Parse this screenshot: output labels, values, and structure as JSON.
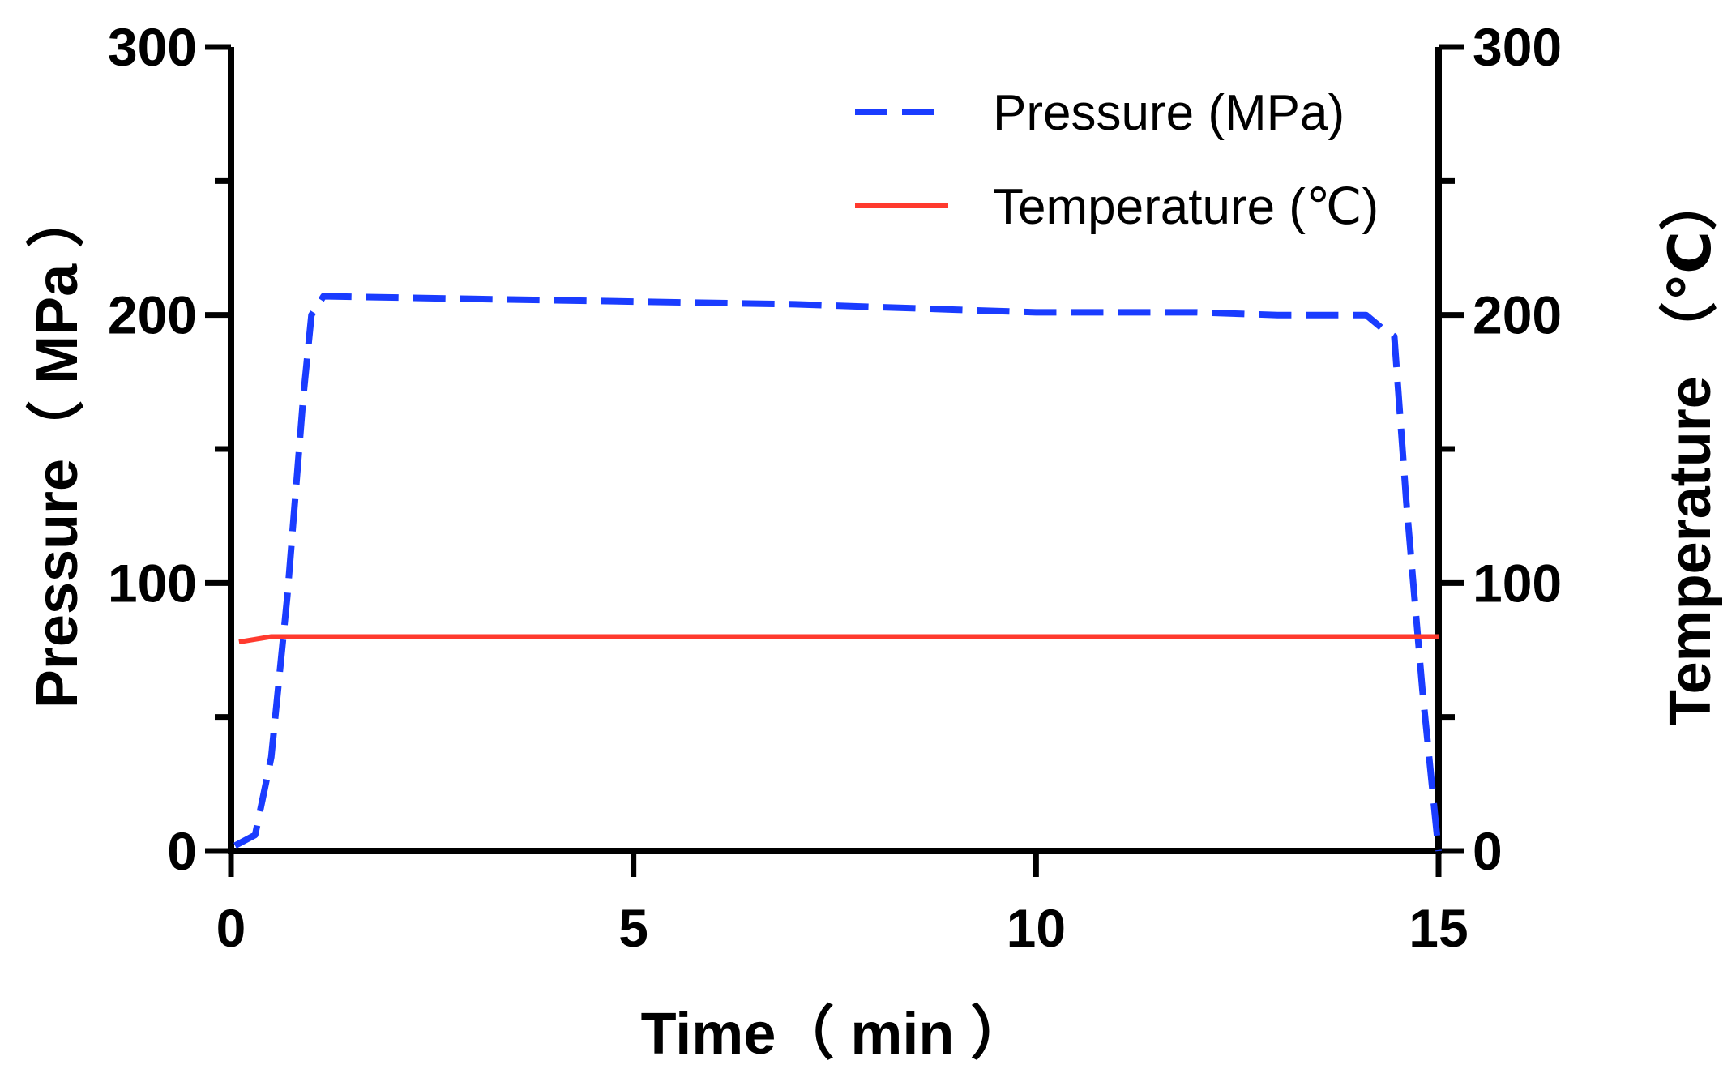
{
  "chart_data": {
    "type": "line",
    "title": "",
    "xlabel": "Time（ min ）",
    "ylabel": "Pressure（ MPa ）",
    "y2label": "Temperature （℃）",
    "xlim": [
      0,
      15
    ],
    "ylim": [
      0,
      300
    ],
    "y2lim": [
      0,
      300
    ],
    "x_ticks": [
      0,
      5,
      10,
      15
    ],
    "y_ticks": [
      0,
      100,
      200,
      300
    ],
    "y2_ticks": [
      0,
      100,
      200,
      300
    ],
    "x_tick_labels": [
      "0",
      "5",
      "10",
      "15"
    ],
    "y_tick_labels": [
      "0",
      "100",
      "200",
      "300"
    ],
    "y2_tick_labels": [
      "0",
      "100",
      "200",
      "300"
    ],
    "grid": false,
    "legend_position": "top-right",
    "series": [
      {
        "name": "Pressure (MPa)",
        "axis": "left",
        "color": "#1a3cff",
        "style": "dashed",
        "x": [
          0.05,
          0.3,
          0.5,
          0.7,
          0.9,
          1.0,
          1.15,
          3,
          5,
          7,
          9,
          10,
          12,
          13,
          14.1,
          14.3,
          14.45,
          14.6,
          14.8,
          15.0
        ],
        "y": [
          2,
          6,
          35,
          95,
          170,
          200,
          207,
          206,
          205,
          204,
          202,
          201,
          201,
          200,
          200,
          195,
          192,
          130,
          60,
          0
        ]
      },
      {
        "name": "Temperature (℃)",
        "axis": "right",
        "color": "#ff3a2e",
        "style": "solid",
        "x": [
          0.1,
          0.3,
          0.5,
          1,
          5,
          10,
          14,
          15
        ],
        "y": [
          78,
          79,
          80,
          80,
          80,
          80,
          80,
          80
        ]
      }
    ]
  }
}
